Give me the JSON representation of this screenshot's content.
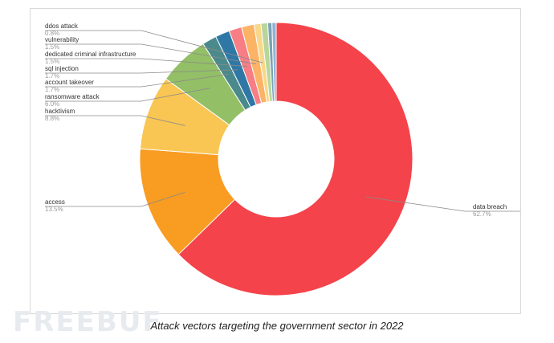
{
  "watermark": {
    "text": "FREEBUF"
  },
  "caption": "Attack vectors targeting the government sector in 2022",
  "chart_data": {
    "type": "pie",
    "donut": true,
    "title": "",
    "legend": "none",
    "slices": [
      {
        "label": "data breach",
        "value": 62.7,
        "value_label": "62.7%",
        "color": "#f4434a"
      },
      {
        "label": "access",
        "value": 13.5,
        "value_label": "13.5%",
        "color": "#f89c22"
      },
      {
        "label": "hacktivism",
        "value": 8.8,
        "value_label": "8.8%",
        "color": "#f9c653"
      },
      {
        "label": "ransomware attack",
        "value": 6.0,
        "value_label": "6.0%",
        "color": "#93bf67"
      },
      {
        "label": "account takeover",
        "value": 1.7,
        "value_label": "1.7%",
        "color": "#4b8a8c"
      },
      {
        "label": "sql injection",
        "value": 1.7,
        "value_label": "1.7%",
        "color": "#2f78a6"
      },
      {
        "label": "dedicated criminal infrastructure",
        "value": 1.5,
        "value_label": "1.5%",
        "color": "#f67e84"
      },
      {
        "label": "vulnerability",
        "value": 1.5,
        "value_label": "1.5%",
        "color": "#fbb466"
      },
      {
        "label": "ddos attack",
        "value": 0.8,
        "value_label": "0.8%",
        "color": "#f7d88a"
      },
      {
        "label": "",
        "value": 0.8,
        "value_label": "",
        "color": "#b9d69a"
      },
      {
        "label": "",
        "value": 0.5,
        "value_label": "",
        "color": "#7aa3b5"
      },
      {
        "label": "",
        "value": 0.5,
        "value_label": "",
        "color": "#8fb3d6"
      }
    ]
  }
}
